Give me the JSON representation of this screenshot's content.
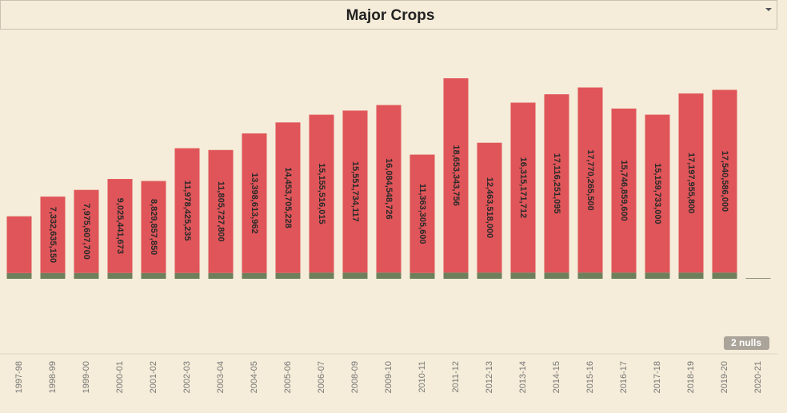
{
  "chart_data": {
    "type": "bar",
    "title": "Major Crops",
    "categories": [
      "1997-98",
      "1998-99",
      "1999-00",
      "2000-01",
      "2001-02",
      "2002-03",
      "2003-04",
      "2004-05",
      "2005-06",
      "2006-07",
      "2008-09",
      "2009-10",
      "2010-11",
      "2011-12",
      "2012-13",
      "2013-14",
      "2014-15",
      "2015-16",
      "2016-17",
      "2017-18",
      "2018-19",
      "2019-20",
      "2020-21"
    ],
    "series": [
      {
        "color": "#6e7f5c",
        "values": [
          550000000,
          560000000,
          560000000,
          560000000,
          560000000,
          560000000,
          560000000,
          560000000,
          560000000,
          600000000,
          600000000,
          600000000,
          560000000,
          600000000,
          600000000,
          600000000,
          600000000,
          600000000,
          600000000,
          600000000,
          600000000,
          600000000,
          60000000
        ]
      },
      {
        "color": "#e05559",
        "values": [
          5450000000,
          7332635150,
          7975607700,
          9025441673,
          8829857850,
          11978425235,
          11805727800,
          13398613962,
          14453705228,
          15155516015,
          15551734117,
          16084548726,
          11363305600,
          18653343756,
          12463518000,
          16315171712,
          17116251095,
          17770265500,
          15746859600,
          15159733000,
          17197955800,
          17540586000,
          null
        ],
        "value_labels": [
          null,
          "7,332,635,150",
          "7,975,607,700",
          "9,025,441,673",
          "8,829,857,850",
          "11,978,425,235",
          "11,805,727,800",
          "13,398,613,962",
          "14,453,705,228",
          "15,155,516,015",
          "15,551,734,117",
          "16,084,548,726",
          "11,363,305,600",
          "18,653,343,756",
          "12,463,518,000",
          "16,315,171,712",
          "17,116,251,095",
          "17,770,265,500",
          "15,746,859,600",
          "15,159,733,000",
          "17,197,955,800",
          "17,540,586,000",
          null
        ]
      }
    ],
    "null_indicator": "2 nulls"
  }
}
